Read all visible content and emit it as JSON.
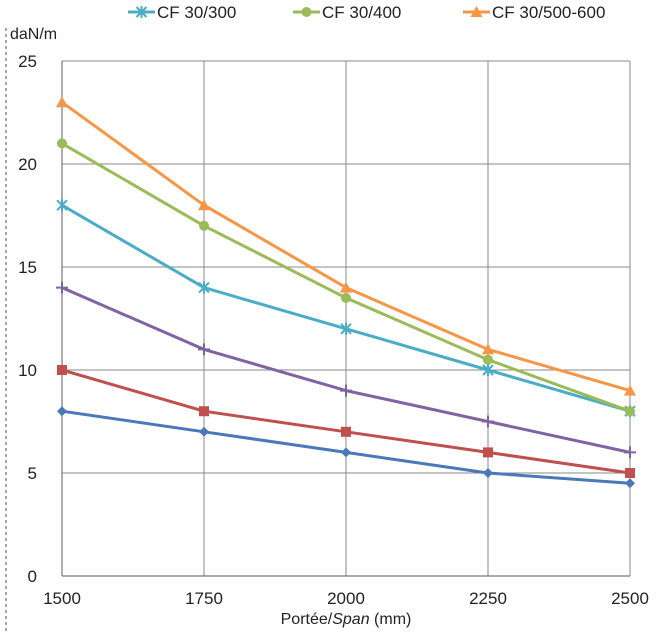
{
  "chart_data": {
    "type": "line",
    "title": "",
    "xlabel_prefix": "Portée/",
    "xlabel_italic": "Span",
    "xlabel_suffix": " (mm)",
    "ylabel": "daN/m",
    "x": [
      1500,
      1750,
      2000,
      2250,
      2500
    ],
    "xlim": [
      1500,
      2500
    ],
    "ylim": [
      0,
      25
    ],
    "yticks": [
      0,
      5,
      10,
      15,
      20,
      25
    ],
    "grid": true,
    "legend_position": "top",
    "series": [
      {
        "name": "",
        "color": "#4a78b8",
        "marker": "diamond",
        "values": [
          8,
          7,
          6,
          5,
          4.5
        ]
      },
      {
        "name": "",
        "color": "#c0504d",
        "marker": "square",
        "values": [
          10,
          8,
          7,
          6,
          5
        ]
      },
      {
        "name": "",
        "color": "#8064a2",
        "marker": "plus",
        "values": [
          14,
          11,
          9,
          7.5,
          6
        ]
      },
      {
        "name": "CF 30/300",
        "color": "#4bacc6",
        "marker": "star",
        "values": [
          18,
          14,
          12,
          10,
          8
        ]
      },
      {
        "name": "CF 30/400",
        "color": "#9bbb59",
        "marker": "circle",
        "values": [
          21,
          17,
          13.5,
          10.5,
          8
        ]
      },
      {
        "name": "CF 30/500-600",
        "color": "#f79646",
        "marker": "triangle",
        "values": [
          23,
          18,
          14,
          11,
          9
        ]
      }
    ]
  }
}
